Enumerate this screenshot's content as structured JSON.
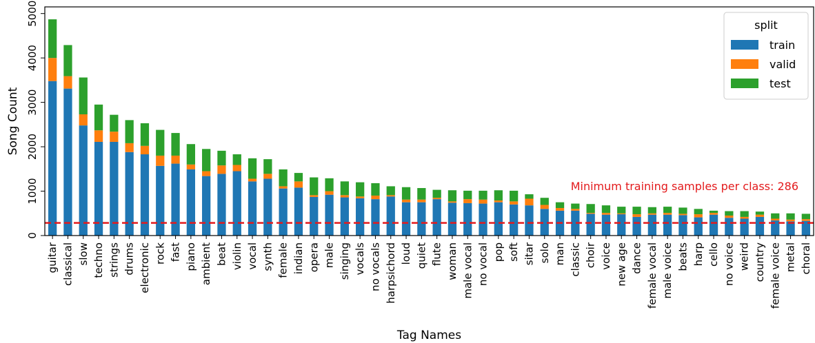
{
  "chart_data": {
    "type": "bar",
    "stacked": true,
    "xlabel": "Tag Names",
    "ylabel": "Song Count",
    "ylim": [
      0,
      5150
    ],
    "yticks": [
      0,
      1000,
      2000,
      3000,
      4000,
      5000
    ],
    "grid": false,
    "legend": {
      "title": "split",
      "placement": "top-right"
    },
    "categories": [
      "guitar",
      "classical",
      "slow",
      "techno",
      "strings",
      "drums",
      "electronic",
      "rock",
      "fast",
      "piano",
      "ambient",
      "beat",
      "violin",
      "vocal",
      "synth",
      "female",
      "indian",
      "opera",
      "male",
      "singing",
      "vocals",
      "no vocals",
      "harpsichord",
      "loud",
      "quiet",
      "flute",
      "woman",
      "male vocal",
      "no vocal",
      "pop",
      "soft",
      "sitar",
      "solo",
      "man",
      "classic",
      "choir",
      "voice",
      "new age",
      "dance",
      "female vocal",
      "male voice",
      "beats",
      "harp",
      "cello",
      "no voice",
      "weird",
      "country",
      "female voice",
      "metal",
      "choral"
    ],
    "series": [
      {
        "name": "train",
        "color": "#1f77b4",
        "values": [
          3480,
          3310,
          2480,
          2110,
          2110,
          1880,
          1830,
          1570,
          1620,
          1490,
          1340,
          1390,
          1450,
          1220,
          1280,
          1060,
          1080,
          870,
          920,
          860,
          840,
          820,
          880,
          750,
          750,
          820,
          740,
          730,
          720,
          750,
          700,
          680,
          600,
          560,
          560,
          490,
          470,
          480,
          420,
          470,
          470,
          460,
          410,
          470,
          400,
          380,
          420,
          340,
          320,
          330
        ]
      },
      {
        "name": "valid",
        "color": "#ff7f0e",
        "values": [
          520,
          280,
          250,
          260,
          230,
          200,
          190,
          230,
          180,
          110,
          110,
          190,
          140,
          60,
          110,
          50,
          140,
          40,
          80,
          50,
          40,
          80,
          30,
          60,
          60,
          30,
          30,
          90,
          90,
          40,
          70,
          150,
          90,
          60,
          40,
          20,
          40,
          20,
          60,
          30,
          40,
          30,
          70,
          40,
          50,
          40,
          50,
          40,
          40,
          40
        ]
      },
      {
        "name": "test",
        "color": "#2ca02c",
        "values": [
          870,
          700,
          830,
          580,
          380,
          520,
          510,
          580,
          510,
          460,
          500,
          330,
          240,
          460,
          330,
          380,
          190,
          400,
          290,
          310,
          320,
          280,
          200,
          280,
          260,
          180,
          250,
          190,
          200,
          230,
          240,
          100,
          160,
          130,
          120,
          200,
          170,
          150,
          170,
          140,
          140,
          140,
          120,
          50,
          100,
          130,
          70,
          120,
          140,
          120
        ]
      }
    ],
    "annotations": [
      {
        "type": "hline",
        "value": 286,
        "color": "#e31a1c",
        "style": "dashed",
        "text": "Minimum training samples per class: 286"
      }
    ]
  }
}
